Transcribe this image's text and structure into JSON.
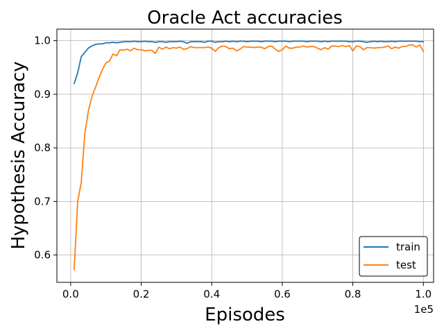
{
  "chart_data": {
    "type": "line",
    "title": "Oracle Act accuracies",
    "xlabel": "Episodes",
    "ylabel": "Hypothesis Accuracy",
    "x_offset_label": "1e5",
    "xlim": [
      -3900,
      102900
    ],
    "ylim": [
      0.549,
      1.0215
    ],
    "x_ticks": [
      0,
      20000,
      40000,
      60000,
      80000,
      100000
    ],
    "x_tick_labels": [
      "0.0",
      "0.2",
      "0.4",
      "0.6",
      "0.8",
      "1.0"
    ],
    "y_ticks": [
      0.6,
      0.7,
      0.8,
      0.9,
      1.0
    ],
    "y_tick_labels": [
      "0.6",
      "0.7",
      "0.8",
      "0.9",
      "1.0"
    ],
    "grid": true,
    "legend_position": "lower-right",
    "x": [
      1000,
      2000,
      3000,
      4000,
      5000,
      6000,
      7000,
      8000,
      9000,
      10000,
      11000,
      12000,
      13000,
      14000,
      15000,
      16000,
      17000,
      18000,
      19000,
      20000,
      21000,
      22000,
      23000,
      24000,
      25000,
      26000,
      27000,
      28000,
      29000,
      30000,
      31000,
      32000,
      33000,
      34000,
      35000,
      36000,
      37000,
      38000,
      39000,
      40000,
      41000,
      42000,
      43000,
      44000,
      45000,
      46000,
      47000,
      48000,
      49000,
      50000,
      51000,
      52000,
      53000,
      54000,
      55000,
      56000,
      57000,
      58000,
      59000,
      60000,
      61000,
      62000,
      63000,
      64000,
      65000,
      66000,
      67000,
      68000,
      69000,
      70000,
      71000,
      72000,
      73000,
      74000,
      75000,
      76000,
      77000,
      78000,
      79000,
      80000,
      81000,
      82000,
      83000,
      84000,
      85000,
      86000,
      87000,
      88000,
      89000,
      90000,
      91000,
      92000,
      93000,
      94000,
      95000,
      96000,
      97000,
      98000,
      99000,
      100000
    ],
    "series": [
      {
        "name": "train",
        "color": "#1f77b4",
        "values": [
          0.92,
          0.94,
          0.97,
          0.978,
          0.986,
          0.99,
          0.993,
          0.994,
          0.994,
          0.996,
          0.996,
          0.997,
          0.996,
          0.997,
          0.998,
          0.998,
          0.998,
          0.999,
          0.998,
          0.998,
          0.999,
          0.998,
          0.998,
          0.997,
          0.998,
          0.998,
          0.997,
          0.998,
          0.998,
          0.998,
          0.999,
          0.998,
          0.995,
          0.998,
          0.998,
          0.998,
          0.998,
          0.997,
          0.999,
          0.999,
          0.997,
          0.998,
          0.998,
          0.999,
          0.998,
          0.999,
          0.998,
          0.999,
          0.999,
          0.998,
          0.999,
          0.999,
          0.999,
          0.998,
          0.999,
          0.999,
          0.999,
          0.998,
          0.999,
          0.999,
          0.999,
          0.998,
          0.999,
          0.999,
          0.999,
          0.999,
          0.998,
          0.999,
          0.999,
          0.999,
          0.998,
          0.999,
          0.998,
          0.999,
          0.999,
          0.999,
          0.999,
          0.999,
          0.998,
          0.998,
          0.999,
          0.999,
          0.998,
          0.997,
          0.998,
          0.999,
          0.998,
          0.999,
          0.998,
          0.998,
          0.999,
          0.998,
          0.999,
          0.999,
          0.999,
          0.999,
          0.999,
          0.999,
          0.998,
          0.998
        ]
      },
      {
        "name": "test",
        "color": "#ff7f0e",
        "values": [
          0.573,
          0.7,
          0.735,
          0.825,
          0.868,
          0.895,
          0.912,
          0.93,
          0.946,
          0.958,
          0.962,
          0.975,
          0.972,
          0.983,
          0.982,
          0.984,
          0.981,
          0.986,
          0.983,
          0.983,
          0.981,
          0.982,
          0.982,
          0.976,
          0.988,
          0.984,
          0.988,
          0.985,
          0.987,
          0.986,
          0.988,
          0.984,
          0.985,
          0.989,
          0.987,
          0.987,
          0.987,
          0.987,
          0.988,
          0.986,
          0.98,
          0.987,
          0.99,
          0.989,
          0.985,
          0.986,
          0.981,
          0.984,
          0.989,
          0.988,
          0.988,
          0.987,
          0.988,
          0.988,
          0.985,
          0.989,
          0.99,
          0.984,
          0.98,
          0.983,
          0.99,
          0.986,
          0.986,
          0.988,
          0.988,
          0.99,
          0.988,
          0.989,
          0.989,
          0.986,
          0.983,
          0.987,
          0.984,
          0.99,
          0.99,
          0.989,
          0.991,
          0.989,
          0.991,
          0.981,
          0.99,
          0.989,
          0.983,
          0.987,
          0.987,
          0.986,
          0.987,
          0.987,
          0.988,
          0.99,
          0.985,
          0.988,
          0.986,
          0.989,
          0.989,
          0.992,
          0.992,
          0.988,
          0.992,
          0.98
        ]
      }
    ]
  }
}
